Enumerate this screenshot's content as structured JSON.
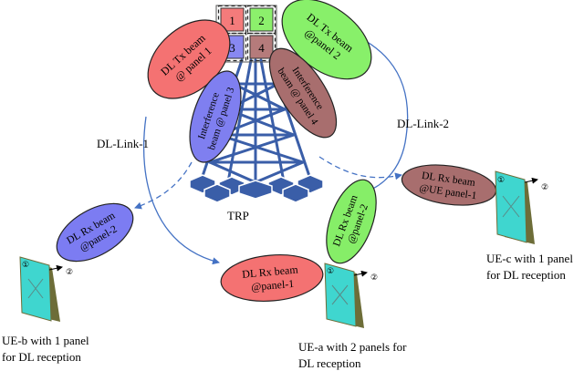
{
  "panels": [
    {
      "label": "1",
      "color": "#f47b7b"
    },
    {
      "label": "2",
      "color": "#8cf06c"
    },
    {
      "label": "3",
      "color": "#8888f2"
    },
    {
      "label": "4",
      "color": "#b57b7b"
    }
  ],
  "beams": {
    "tx1": {
      "line1": "DL Tx beam",
      "line2": "@ panel 1",
      "color": "#f47272"
    },
    "tx2": {
      "line1": "DL Tx beam",
      "line2": "@panel 2",
      "color": "#88f06a"
    },
    "intf3": {
      "line1": "Interference",
      "line2": "beam @ panel 3",
      "color": "#7f7ff0"
    },
    "intf4": {
      "line1": "Interference",
      "line2": "beam @ panel 4",
      "color": "#a86e6e"
    },
    "rx_b": {
      "line1": "DL Rx beam",
      "line2": "@panel-2",
      "color": "#7c7cf2"
    },
    "rx_a1": {
      "line1": "DL Rx beam",
      "line2": "@panel-1",
      "color": "#f47272"
    },
    "rx_a2": {
      "line1": "DL Rx beam",
      "line2": "@panel-2",
      "color": "#86ee68"
    },
    "rx_c": {
      "line1": "DL Rx beam",
      "line2": "@UE panel-1",
      "color": "#a86e6e"
    }
  },
  "links": {
    "link1": "DL-Link-1",
    "link2": "DL-Link-2"
  },
  "trp_label": "TRP",
  "ue_panel_marks": {
    "front": "①",
    "back": "②"
  },
  "ues": {
    "ue_a": {
      "line1": "UE-a with 2 panels for",
      "line2": "DL reception"
    },
    "ue_b": {
      "line1": "UE-b with 1 panel",
      "line2": "for DL reception"
    },
    "ue_c": {
      "line1": "UE-c with 1 panel",
      "line2": "for DL reception"
    }
  },
  "colors": {
    "tower": "#3a5ea8",
    "link_arrow": "#4472c4",
    "ue_panel_face": "#3fd6cf",
    "ue_panel_edge": "#6d6d38"
  }
}
